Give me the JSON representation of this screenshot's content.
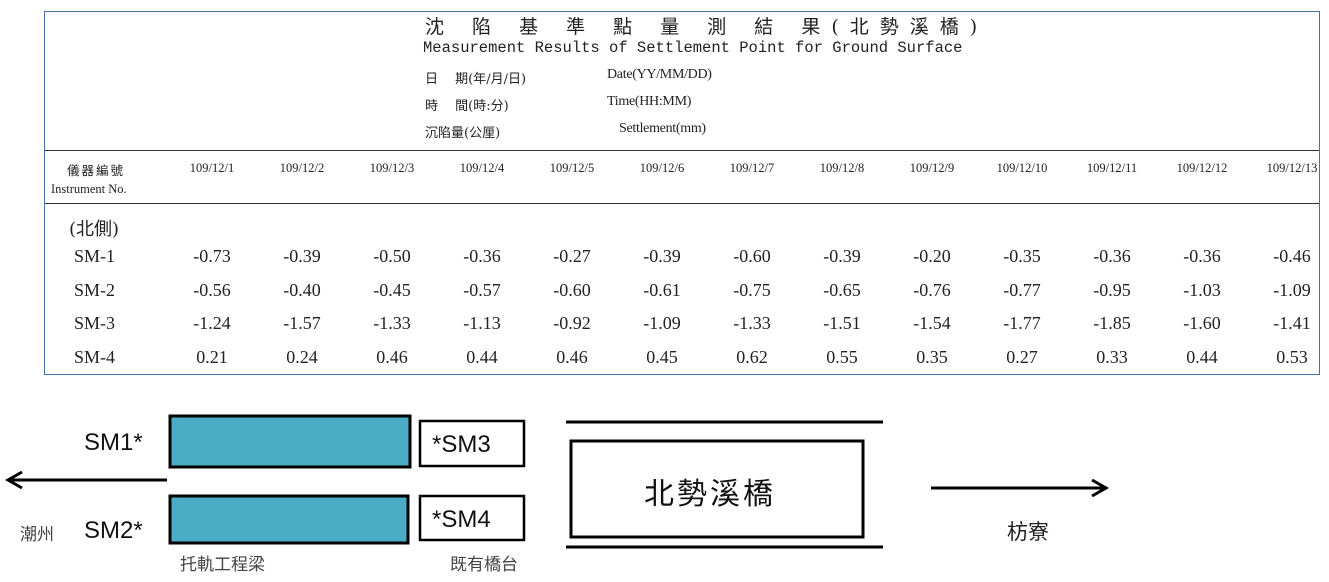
{
  "header": {
    "title_zh": "沈 陷 基 準 點 量 測 結 果(北勢溪橋)",
    "title_en": "Measurement Results of Settlement Point for Ground Surface",
    "date_zh": "日　 期(年/月/日)",
    "date_en": "Date(YY/MM/DD)",
    "time_zh": "時　 間(時:分)",
    "time_en": "Time(HH:MM)",
    "settle_zh": "沉陷量(公厘)",
    "settle_en": "Settlement(mm)"
  },
  "table": {
    "instrument_zh": "儀器編號",
    "instrument_en": "Instrument No.",
    "dates": [
      "109/12/1",
      "109/12/2",
      "109/12/3",
      "109/12/4",
      "109/12/5",
      "109/12/6",
      "109/12/7",
      "109/12/8",
      "109/12/9",
      "109/12/10",
      "109/12/11",
      "109/12/12",
      "109/12/13"
    ],
    "section": "(北側)",
    "rows": [
      {
        "label": "SM-1",
        "values": [
          "-0.73",
          "-0.39",
          "-0.50",
          "-0.36",
          "-0.27",
          "-0.39",
          "-0.60",
          "-0.39",
          "-0.20",
          "-0.35",
          "-0.36",
          "-0.36",
          "-0.46"
        ]
      },
      {
        "label": "SM-2",
        "values": [
          "-0.56",
          "-0.40",
          "-0.45",
          "-0.57",
          "-0.60",
          "-0.61",
          "-0.75",
          "-0.65",
          "-0.76",
          "-0.77",
          "-0.95",
          "-1.03",
          "-1.09"
        ]
      },
      {
        "label": "SM-3",
        "values": [
          "-1.24",
          "-1.57",
          "-1.33",
          "-1.13",
          "-0.92",
          "-1.09",
          "-1.33",
          "-1.51",
          "-1.54",
          "-1.77",
          "-1.85",
          "-1.60",
          "-1.41"
        ]
      },
      {
        "label": "SM-4",
        "values": [
          "0.21",
          "0.24",
          "0.46",
          "0.44",
          "0.46",
          "0.45",
          "0.62",
          "0.55",
          "0.35",
          "0.27",
          "0.33",
          "0.44",
          "0.53"
        ]
      }
    ]
  },
  "diagram": {
    "sm1": "SM1*",
    "sm2": "SM2*",
    "sm3": "*SM3",
    "sm4": "*SM4",
    "bridge": "北勢溪橋",
    "left_place": "潮州",
    "right_place": "枋寮",
    "beam_label": "托軌工程梁",
    "abutment_label": "既有橋台",
    "beam_color": "#4bacc6"
  }
}
